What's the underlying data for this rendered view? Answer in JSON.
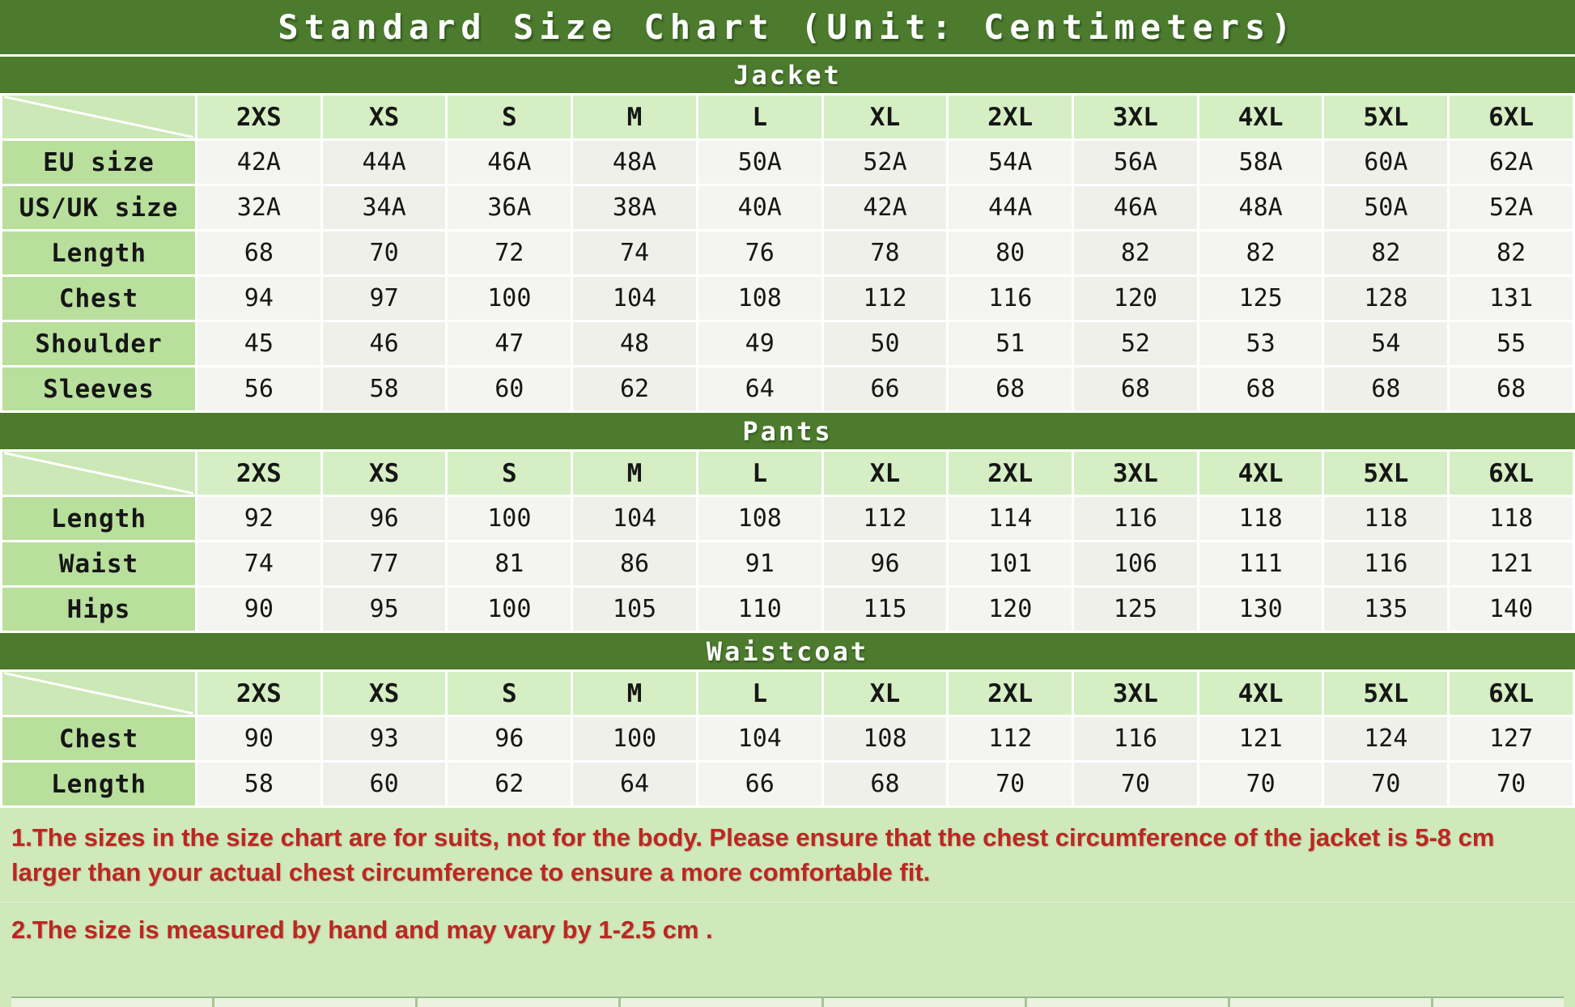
{
  "title": "Standard Size Chart (Unit: Centimeters)",
  "sizes": [
    "2XS",
    "XS",
    "S",
    "M",
    "L",
    "XL",
    "2XL",
    "3XL",
    "4XL",
    "5XL",
    "6XL"
  ],
  "chart_data": [
    {
      "type": "table",
      "title": "Jacket",
      "columns": [
        "2XS",
        "XS",
        "S",
        "M",
        "L",
        "XL",
        "2XL",
        "3XL",
        "4XL",
        "5XL",
        "6XL"
      ],
      "rows": [
        {
          "label": "EU size",
          "values": [
            "42A",
            "44A",
            "46A",
            "48A",
            "50A",
            "52A",
            "54A",
            "56A",
            "58A",
            "60A",
            "62A"
          ]
        },
        {
          "label": "US/UK size",
          "values": [
            "32A",
            "34A",
            "36A",
            "38A",
            "40A",
            "42A",
            "44A",
            "46A",
            "48A",
            "50A",
            "52A"
          ]
        },
        {
          "label": "Length",
          "values": [
            68,
            70,
            72,
            74,
            76,
            78,
            80,
            82,
            82,
            82,
            82
          ]
        },
        {
          "label": "Chest",
          "values": [
            94,
            97,
            100,
            104,
            108,
            112,
            116,
            120,
            125,
            128,
            131
          ]
        },
        {
          "label": "Shoulder",
          "values": [
            45,
            46,
            47,
            48,
            49,
            50,
            51,
            52,
            53,
            54,
            55
          ]
        },
        {
          "label": "Sleeves",
          "values": [
            56,
            58,
            60,
            62,
            64,
            66,
            68,
            68,
            68,
            68,
            68
          ]
        }
      ]
    },
    {
      "type": "table",
      "title": "Pants",
      "columns": [
        "2XS",
        "XS",
        "S",
        "M",
        "L",
        "XL",
        "2XL",
        "3XL",
        "4XL",
        "5XL",
        "6XL"
      ],
      "rows": [
        {
          "label": "Length",
          "values": [
            92,
            96,
            100,
            104,
            108,
            112,
            114,
            116,
            118,
            118,
            118
          ]
        },
        {
          "label": "Waist",
          "values": [
            74,
            77,
            81,
            86,
            91,
            96,
            101,
            106,
            111,
            116,
            121
          ]
        },
        {
          "label": "Hips",
          "values": [
            90,
            95,
            100,
            105,
            110,
            115,
            120,
            125,
            130,
            135,
            140
          ]
        }
      ]
    },
    {
      "type": "table",
      "title": "Waistcoat",
      "columns": [
        "2XS",
        "XS",
        "S",
        "M",
        "L",
        "XL",
        "2XL",
        "3XL",
        "4XL",
        "5XL",
        "6XL"
      ],
      "rows": [
        {
          "label": "Chest",
          "values": [
            90,
            93,
            96,
            100,
            104,
            108,
            112,
            116,
            121,
            124,
            127
          ]
        },
        {
          "label": "Length",
          "values": [
            58,
            60,
            62,
            64,
            66,
            68,
            70,
            70,
            70,
            70,
            70
          ]
        }
      ]
    }
  ],
  "notes": {
    "note1": "1.The sizes in the size chart are for suits, not for the body. Please ensure that the chest circumference of the jacket is 5-8 cm larger than your actual chest circumference to ensure a more comfortable fit.",
    "note2": "2.The size is measured by hand and may vary by 1-2.5 cm ."
  },
  "colors": {
    "band_green": "#4c7b2e",
    "header_cell": "#d5eec3",
    "diag_cell": "#cbe8b6",
    "label_cell": "#b9df9d",
    "value_cell": "#f4f4f0",
    "value_cell_alt": "#eef0e9",
    "footer_bg": "#cfe9ba",
    "note_red": "#bc2722",
    "gridline": "#ffffff"
  }
}
